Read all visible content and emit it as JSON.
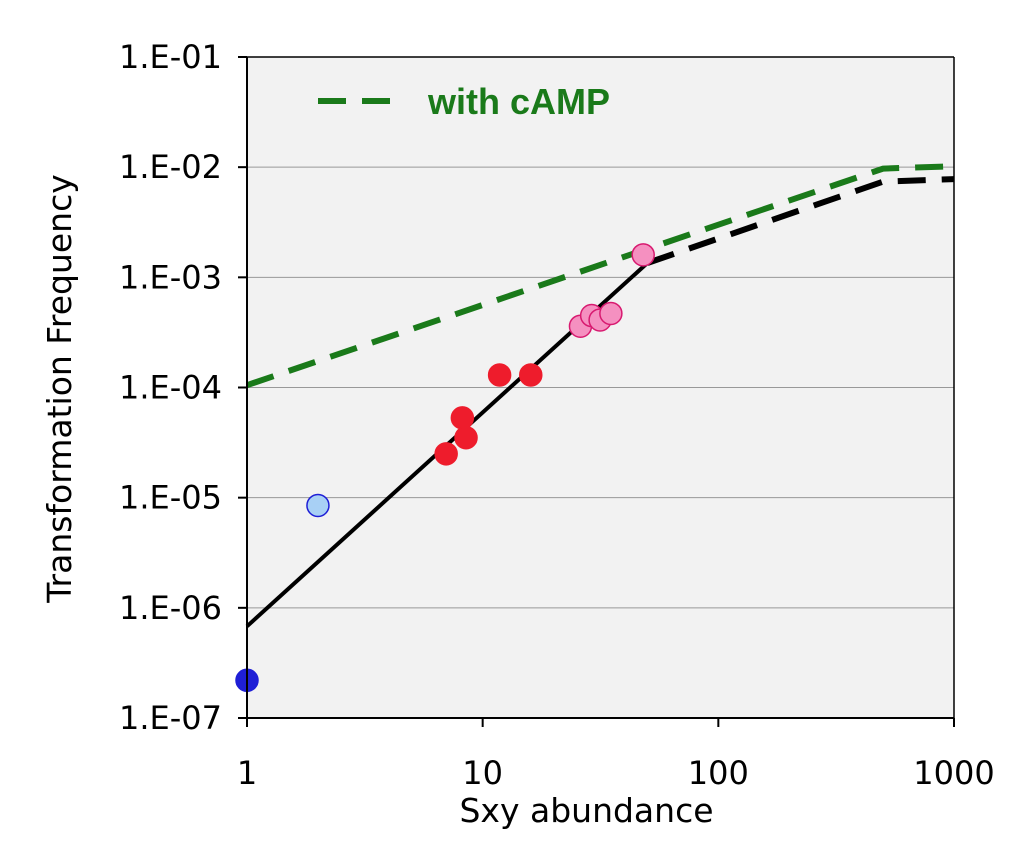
{
  "chart_data": {
    "type": "scatter",
    "xscale": "log",
    "yscale": "log",
    "xlim": [
      1,
      1000
    ],
    "ylim": [
      1e-07,
      0.1
    ],
    "xlabel": "Sxy abundance",
    "ylabel": "Transformation Frequency",
    "x_tick_values": [
      1,
      10,
      100,
      1000
    ],
    "x_tick_labels": [
      "1",
      "10",
      "100",
      "1000"
    ],
    "y_tick_values": [
      1e-07,
      1e-06,
      1e-05,
      0.0001,
      0.001,
      0.01,
      0.1
    ],
    "y_tick_labels": [
      "1.E-07",
      "1.E-06",
      "1.E-05",
      "1.E-04",
      "1.E-03",
      "1.E-02",
      "1.E-01"
    ],
    "grid": "horizontal",
    "legend_position": "top-left",
    "legend": {
      "label": "with cAMP",
      "style": "dashed",
      "color": "#1a7a1a"
    },
    "colors": {
      "plot_background": "#f2f2f2",
      "grid": "#999999",
      "camp_line": "#1a7a1a",
      "fit_line": "#000000",
      "dark_blue_points": "#1f1fd6",
      "light_blue_points": "#a8d0f5",
      "red_points": "#ee1c2c",
      "pink_points": "#f590c0",
      "pink_edge": "#d81a70",
      "blue_edge": "#1f1fd6"
    },
    "series": [
      {
        "name": "with cAMP",
        "kind": "line",
        "style": "dashed",
        "color": "#1a7a1a",
        "points": [
          [
            1,
            0.000105
          ],
          [
            500,
            0.0097
          ],
          [
            1000,
            0.0102
          ]
        ]
      },
      {
        "kind": "line",
        "style": "solid",
        "color": "#000000",
        "points": [
          [
            1,
            6.8e-07
          ],
          [
            50,
            0.00135
          ]
        ]
      },
      {
        "kind": "line",
        "style": "dashed",
        "color": "#000000",
        "points": [
          [
            50,
            0.00135
          ],
          [
            500,
            0.0074
          ],
          [
            1000,
            0.0078
          ]
        ]
      },
      {
        "kind": "points",
        "fill": "#1f1fd6",
        "edge": "#1f1fd6",
        "points": [
          [
            1,
            2.2e-07
          ]
        ]
      },
      {
        "kind": "points",
        "fill": "#a8d0f5",
        "edge": "#1f1fd6",
        "points": [
          [
            2,
            8.5e-06
          ]
        ]
      },
      {
        "kind": "points",
        "fill": "#ee1c2c",
        "edge": "#ee1c2c",
        "points": [
          [
            7,
            2.5e-05
          ],
          [
            8.2,
            5.3e-05
          ],
          [
            8.5,
            3.5e-05
          ],
          [
            11.8,
            0.00013
          ],
          [
            16,
            0.00013
          ]
        ]
      },
      {
        "kind": "points",
        "fill": "#f590c0",
        "edge": "#d81a70",
        "points": [
          [
            26,
            0.00036
          ],
          [
            29,
            0.00045
          ],
          [
            31.5,
            0.00041
          ],
          [
            35,
            0.00047
          ],
          [
            48,
            0.0016
          ]
        ]
      }
    ]
  }
}
